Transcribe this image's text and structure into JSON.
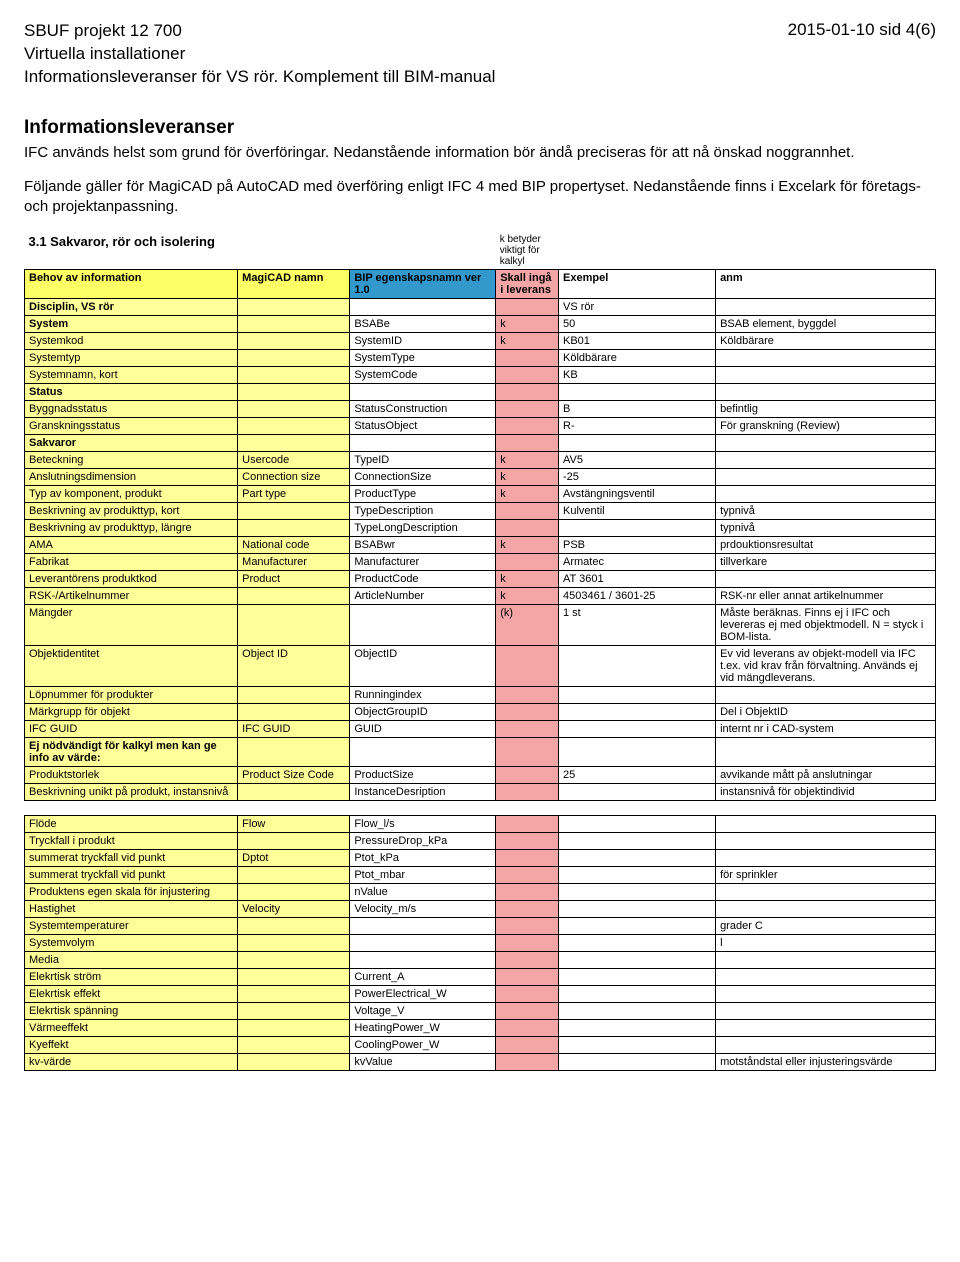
{
  "header": {
    "line1": "SBUF projekt 12 700",
    "line2": "Virtuella installationer",
    "line3": "Informationsleveranser för VS rör. Komplement till BIM-manual",
    "right": "2015-01-10 sid 4(6)"
  },
  "intro": {
    "title": "Informationsleveranser",
    "p1": "IFC används helst som grund för överföringar. Nedanstående information bör ändå preciseras för att nå önskad noggrannhet.",
    "p2": "Följande gäller för MagiCAD på AutoCAD med överföring enligt IFC 4 med BIP propertyset. Nedanstående finns i Excelark för företags- och projektanpassning."
  },
  "table": {
    "title": "3.1 Sakvaror, rör och isolering",
    "note": "k betyder viktigt för kalkyl",
    "headers": {
      "c0": "Behov av information",
      "c1": "MagiCAD namn",
      "c2": "BIP egenskapsnamn ver 1.0",
      "c3": "Skall ingå i leverans",
      "c4": "Exempel",
      "c5": "anm"
    },
    "rows": [
      {
        "type": "section",
        "c0": "Disciplin, VS rör",
        "c4": "VS rör"
      },
      {
        "type": "section",
        "c0": "System",
        "c2": "BSABe",
        "c3": "k",
        "c4": "50",
        "c5": "BSAB element, byggdel"
      },
      {
        "c0": "Systemkod",
        "c2": "SystemID",
        "c3": "k",
        "c4": "KB01",
        "c5": "Köldbärare"
      },
      {
        "c0": "Systemtyp",
        "c2": "SystemType",
        "c4": "Köldbärare"
      },
      {
        "c0": "Systemnamn, kort",
        "c2": "SystemCode",
        "c4": "KB"
      },
      {
        "type": "section",
        "c0": "Status"
      },
      {
        "c0": "Byggnadsstatus",
        "c2": "StatusConstruction",
        "c4": "B",
        "c5": "befintlig"
      },
      {
        "c0": "Granskningsstatus",
        "c2": "StatusObject",
        "c4": "R-",
        "c5": "För granskning (Review)"
      },
      {
        "type": "section",
        "c0": "Sakvaror"
      },
      {
        "c0": "Beteckning",
        "c1": "Usercode",
        "c2": "TypeID",
        "c3": "k",
        "c4": "AV5"
      },
      {
        "c0": "Anslutningsdimension",
        "c1": "Connection size",
        "c2": "ConnectionSize",
        "c3": "k",
        "c4": "-25"
      },
      {
        "c0": "Typ av komponent, produkt",
        "c1": "Part type",
        "c2": "ProductType",
        "c3": "k",
        "c4": "Avstängningsventil"
      },
      {
        "c0": "Beskrivning av produkttyp, kort",
        "c2": "TypeDescription",
        "c4": "Kulventil",
        "c5": "typnivå"
      },
      {
        "c0": "Beskrivning av produkttyp, längre",
        "c2": "TypeLongDescription",
        "c5": "typnivå"
      },
      {
        "c0": "AMA",
        "c1": "National code",
        "c2": "BSABwr",
        "c3": "k",
        "c4": "PSB",
        "c5": "prdouktionsresultat"
      },
      {
        "c0": "Fabrikat",
        "c1": "Manufacturer",
        "c2": "Manufacturer",
        "c4": "Armatec",
        "c5": "tillverkare"
      },
      {
        "c0": "Leverantörens produktkod",
        "c1": "Product",
        "c2": "ProductCode",
        "c3": "k",
        "c4": "AT 3601"
      },
      {
        "c0": "RSK-/Artikelnummer",
        "c2": "ArticleNumber",
        "c3": "k",
        "c4": "4503461 / 3601-25",
        "c5": "RSK-nr eller annat artikelnummer"
      },
      {
        "c0": "Mängder",
        "c3": "(k)",
        "c4": "1 st",
        "c5": "Måste beräknas. Finns ej i IFC och levereras ej med objektmodell. N = styck i BOM-lista."
      },
      {
        "c0": "Objektidentitet",
        "c1": "Object ID",
        "c2": "ObjectID",
        "c5": "Ev vid leverans av objekt-modell via IFC t.ex. vid krav från förvaltning. Används ej vid mängdleverans."
      },
      {
        "c0": "Löpnummer för produkter",
        "c2": "Runningindex"
      },
      {
        "c0": "Märkgrupp för objekt",
        "c2": "ObjectGroupID",
        "c5": "Del i ObjektID"
      },
      {
        "c0": "IFC GUID",
        "c1": "IFC GUID",
        "c2": "GUID",
        "c5": "internt nr i CAD-system"
      },
      {
        "type": "section",
        "c0": "Ej nödvändigt för kalkyl men kan ge info av värde:"
      },
      {
        "c0": "Produktstorlek",
        "c1": "Product Size Code",
        "c2": "ProductSize",
        "c4": "25",
        "c5": "avvikande mått på anslutningar"
      },
      {
        "c0": "Beskrivning unikt på produkt, instansnivå",
        "c2": "InstanceDesription",
        "c5": "instansnivå för objektindivid"
      },
      {
        "type": "spacer"
      },
      {
        "c0": "Flöde",
        "c1": "Flow",
        "c2": "Flow_l/s"
      },
      {
        "c0": "Tryckfall i produkt",
        "c2": "PressureDrop_kPa"
      },
      {
        "c0": "summerat tryckfall vid punkt",
        "c1": "Dptot",
        "c2": "Ptot_kPa"
      },
      {
        "c0": "summerat tryckfall vid punkt",
        "c2": "Ptot_mbar",
        "c5": "för sprinkler"
      },
      {
        "c0": "Produktens egen skala för injustering",
        "c2": "nValue"
      },
      {
        "c0": "Hastighet",
        "c1": "Velocity",
        "c2": "Velocity_m/s"
      },
      {
        "c0": "Systemtemperaturer",
        "c5": "grader C"
      },
      {
        "c0": "Systemvolym",
        "c5": "l"
      },
      {
        "c0": "Media"
      },
      {
        "c0": "Elekrtisk ström",
        "c2": "Current_A"
      },
      {
        "c0": "Elekrtisk effekt",
        "c2": "PowerElectrical_W"
      },
      {
        "c0": "Elekrtisk spänning",
        "c2": "Voltage_V"
      },
      {
        "c0": "Värmeeffekt",
        "c2": "HeatingPower_W"
      },
      {
        "c0": "Kyeffekt",
        "c2": "CoolingPower_W"
      },
      {
        "c0": "kv-värde",
        "c2": "kvValue",
        "c5": "motståndstal eller injusteringsvärde"
      }
    ]
  }
}
